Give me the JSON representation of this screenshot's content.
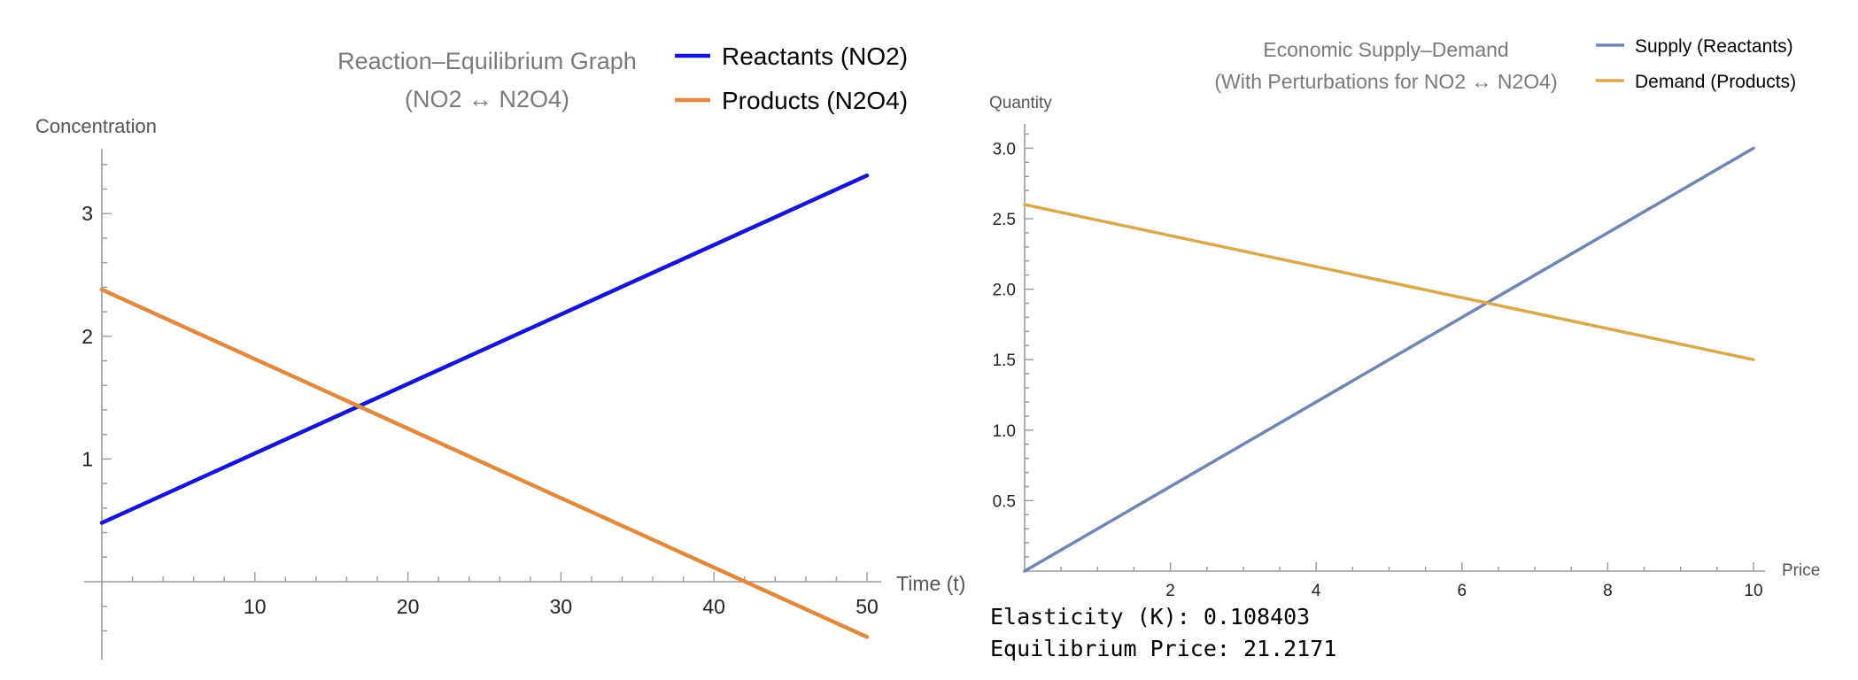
{
  "chart_data": [
    {
      "type": "line",
      "title": "Reaction–Equilibrium Graph",
      "subtitle": "(NO2 ↔ N2O4)",
      "xlabel": "Time (t)",
      "ylabel": "Concentration",
      "xlim": [
        0,
        50
      ],
      "ylim": [
        -0.6,
        3.5
      ],
      "x_ticks": [
        10,
        20,
        30,
        40,
        50
      ],
      "y_ticks": [
        1,
        2,
        3
      ],
      "grid": false,
      "legend_position": "top-right",
      "series": [
        {
          "name": "Reactants (NO2)",
          "color": "#1515d8",
          "x": [
            0,
            50
          ],
          "y": [
            0.48,
            3.31
          ]
        },
        {
          "name": "Products (N2O4)",
          "color": "#e0893f",
          "x": [
            0,
            50
          ],
          "y": [
            2.38,
            -0.45
          ]
        }
      ]
    },
    {
      "type": "line",
      "title": "Economic Supply–Demand",
      "subtitle": "(With Perturbations for NO2 ↔ N2O4)",
      "xlabel": "Price",
      "ylabel": "Quantity",
      "xlim": [
        0,
        10
      ],
      "ylim": [
        0,
        3.1
      ],
      "x_ticks": [
        2,
        4,
        6,
        8,
        10
      ],
      "y_ticks": [
        "0.5",
        "1.0",
        "1.5",
        "2.0",
        "2.5",
        "3.0"
      ],
      "grid": false,
      "legend_position": "top-right",
      "series": [
        {
          "name": "Supply (Reactants)",
          "color": "#6f86b3",
          "x": [
            0,
            10
          ],
          "y": [
            0.0,
            3.0
          ]
        },
        {
          "name": "Demand (Products)",
          "color": "#d8a84a",
          "x": [
            0,
            10
          ],
          "y": [
            2.6,
            1.5
          ]
        }
      ]
    }
  ],
  "notes": {
    "elasticity": "Elasticity (K): 0.108403",
    "equilibrium_price": "Equilibrium Price: 21.2171"
  }
}
